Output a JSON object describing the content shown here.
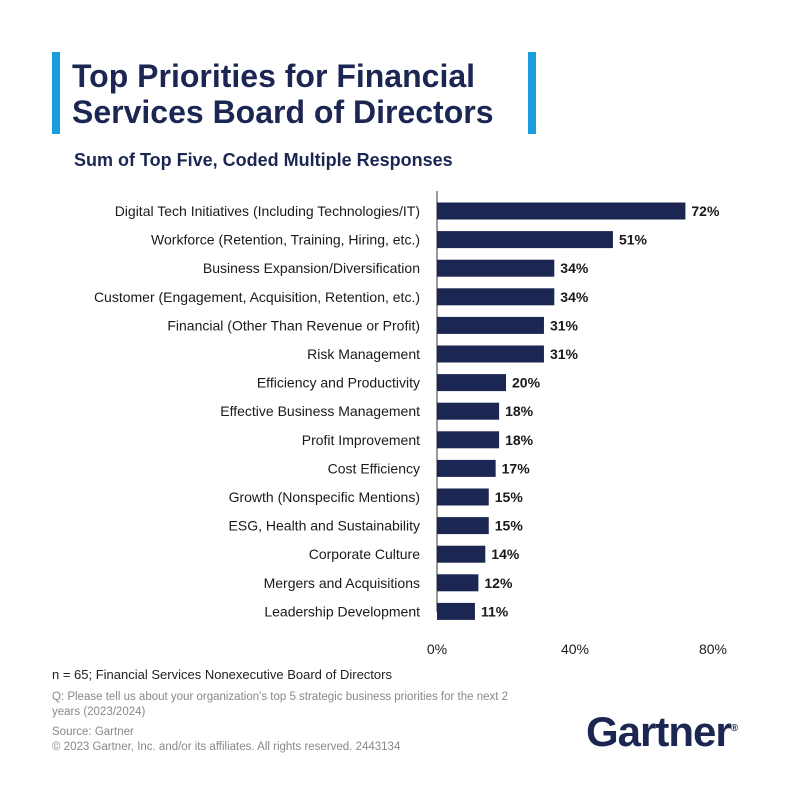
{
  "header": {
    "title": "Top Priorities for Financial Services Board of Directors",
    "subtitle": "Sum of Top Five, Coded Multiple Responses"
  },
  "colors": {
    "bar": "#1c2653",
    "accent": "#1b9be0",
    "text": "#1c2653"
  },
  "chart_data": {
    "type": "bar",
    "orientation": "horizontal",
    "title": "Top Priorities for Financial Services Board of Directors",
    "subtitle": "Sum of Top Five, Coded Multiple Responses",
    "categories": [
      "Digital Tech Initiatives (Including Technologies/IT)",
      "Workforce (Retention, Training, Hiring, etc.)",
      "Business Expansion/Diversification",
      "Customer (Engagement, Acquisition, Retention, etc.)",
      "Financial (Other Than Revenue or Profit)",
      "Risk Management",
      "Efficiency and Productivity",
      "Effective Business Management",
      "Profit Improvement",
      "Cost Efficiency",
      "Growth (Nonspecific Mentions)",
      "ESG, Health and Sustainability",
      "Corporate Culture",
      "Mergers and Acquisitions",
      "Leadership Development"
    ],
    "values": [
      72,
      51,
      34,
      34,
      31,
      31,
      20,
      18,
      18,
      17,
      15,
      15,
      14,
      12,
      11
    ],
    "value_labels": [
      "72%",
      "51%",
      "34%",
      "34%",
      "31%",
      "31%",
      "20%",
      "18%",
      "18%",
      "17%",
      "15%",
      "15%",
      "14%",
      "12%",
      "11%"
    ],
    "xlim": [
      0,
      80
    ],
    "xticks": [
      0,
      40,
      80
    ],
    "xtick_labels": [
      "0%",
      "40%",
      "80%"
    ],
    "grid": false
  },
  "footer": {
    "n_note": "n = 65; Financial Services Nonexecutive Board of Directors",
    "question": "Q: Please tell us about your organization's top 5 strategic business priorities for the next 2 years (2023/2024)",
    "source": "Source: Gartner",
    "copyright": "© 2023 Gartner, Inc. and/or its affiliates. All rights reserved. 2443134",
    "logo_text": "Gartner",
    "logo_mark": "®"
  }
}
